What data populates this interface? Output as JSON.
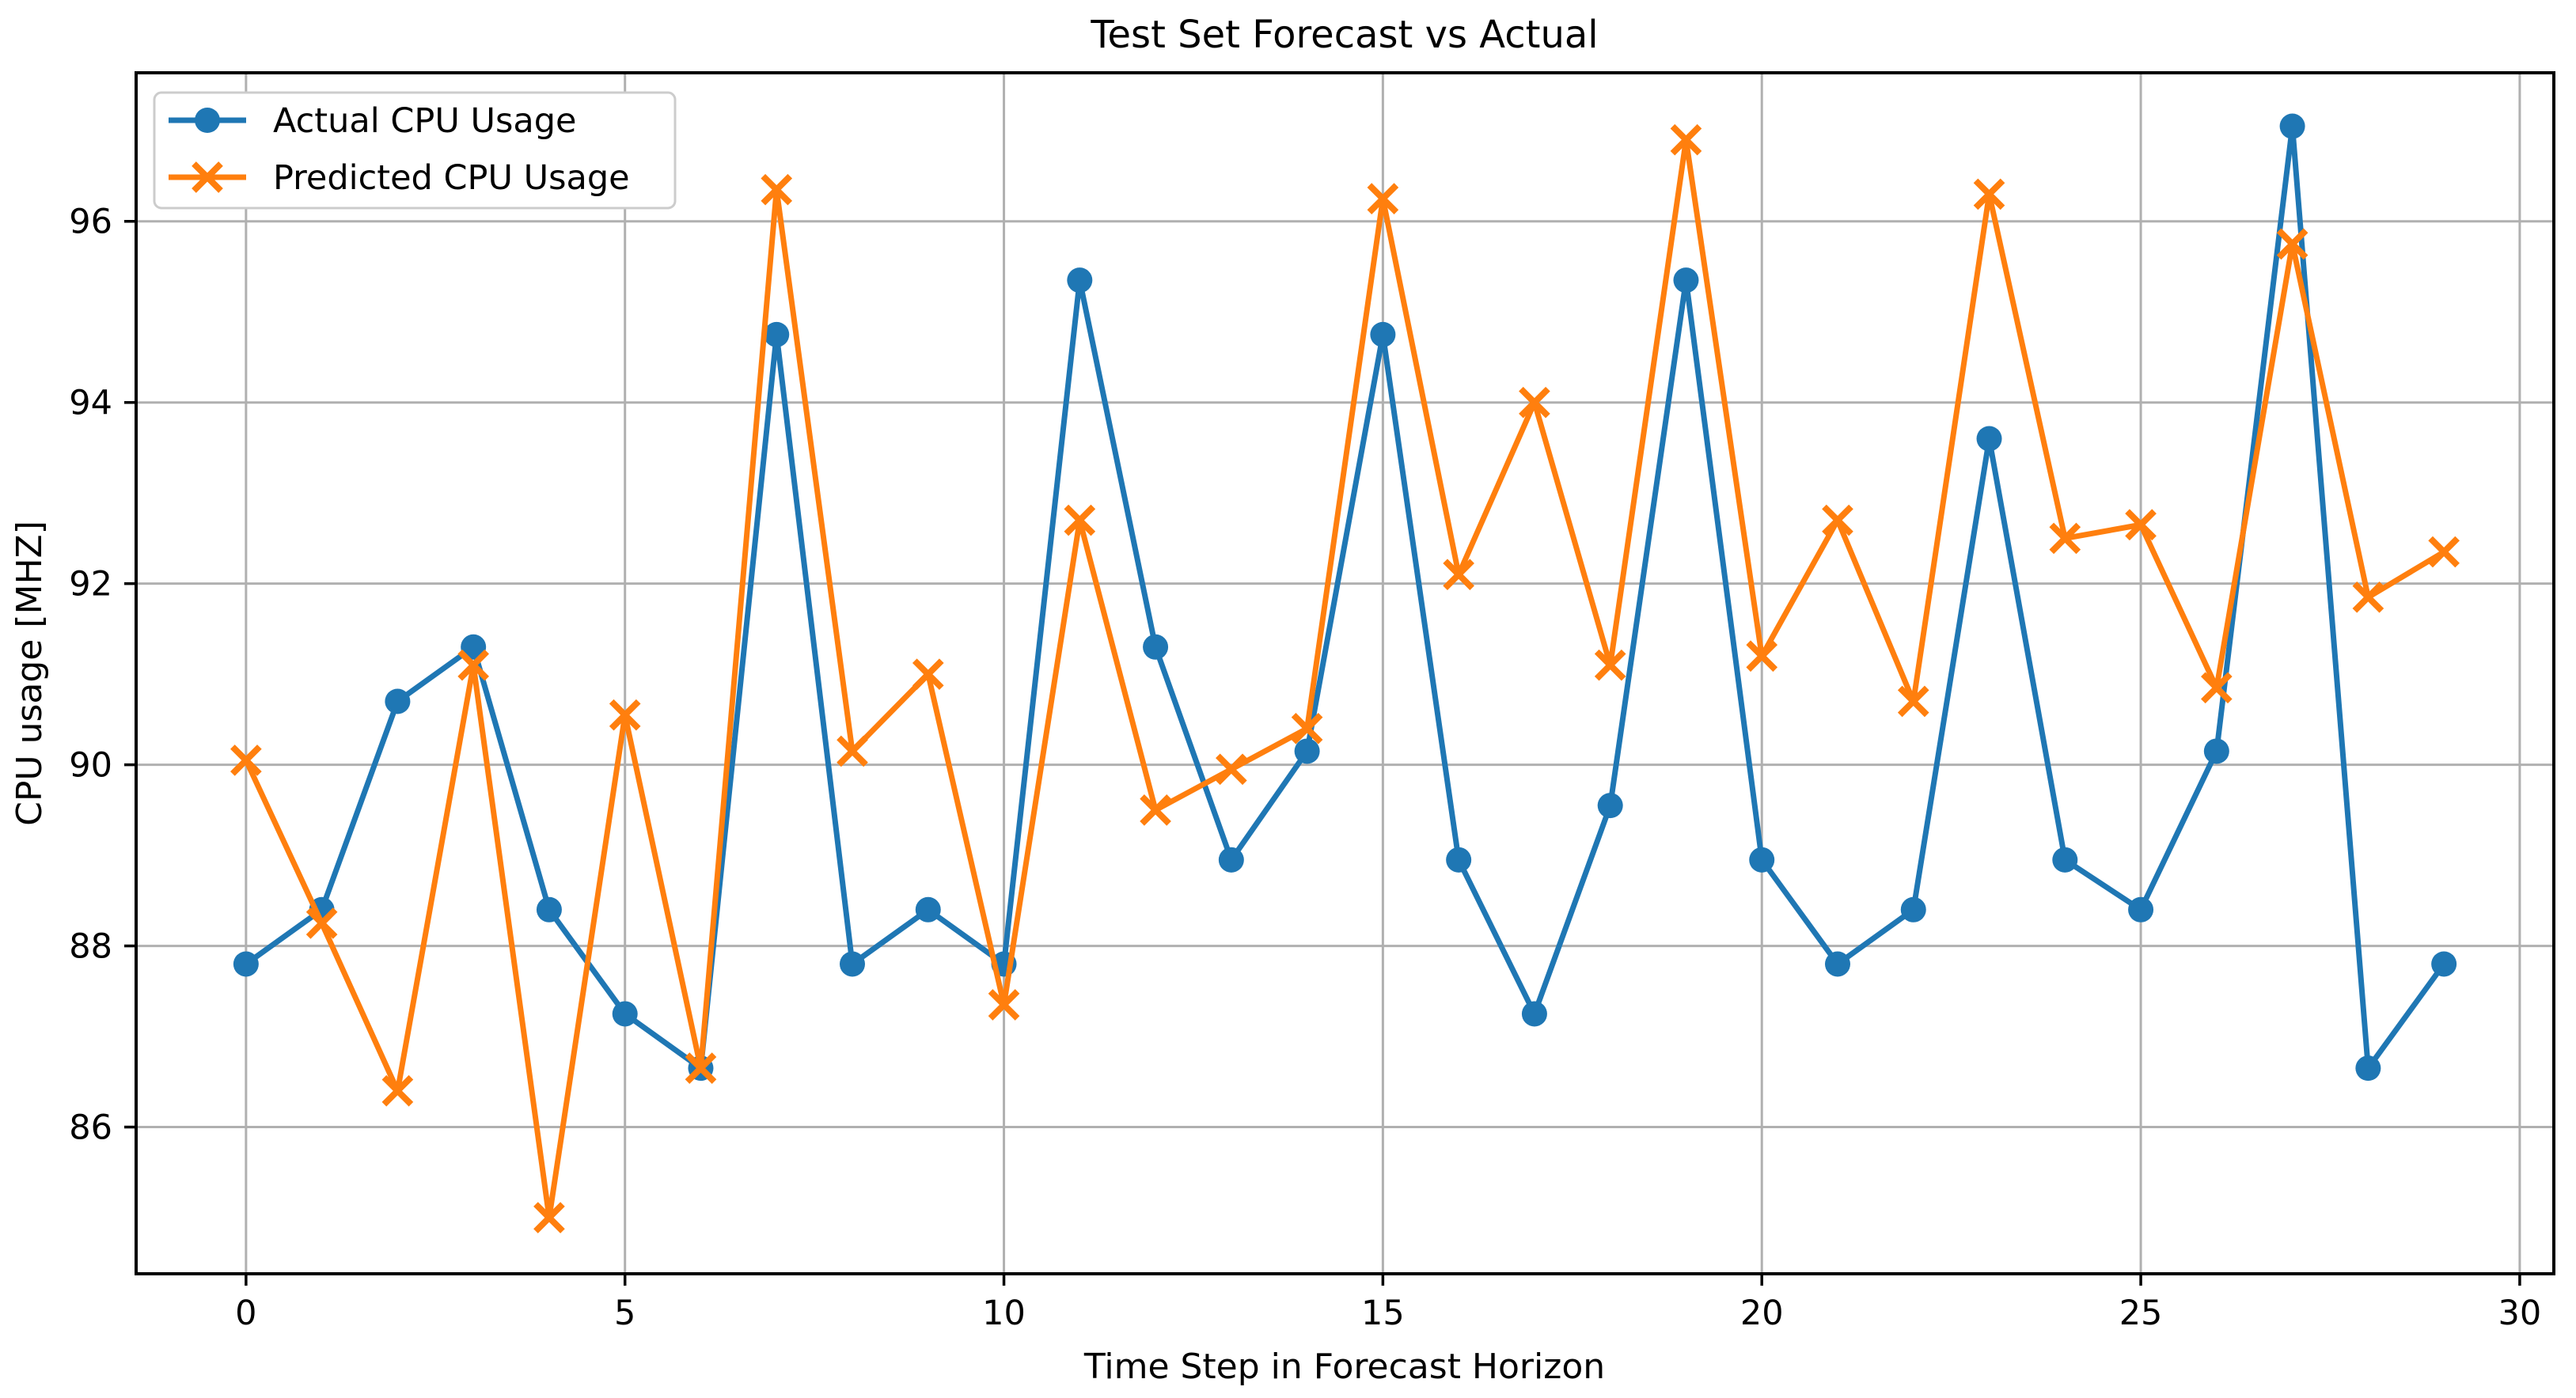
{
  "figure": {
    "background": "#ffffff"
  },
  "chart_data": {
    "type": "line",
    "title": "Test Set Forecast vs Actual",
    "xlabel": "Time Step in Forecast Horizon",
    "ylabel": "CPU usage [MHZ]",
    "x": [
      0,
      1,
      2,
      3,
      4,
      5,
      6,
      7,
      8,
      9,
      10,
      11,
      12,
      13,
      14,
      15,
      16,
      17,
      18,
      19,
      20,
      21,
      22,
      23,
      24,
      25,
      26,
      27,
      28,
      29
    ],
    "series": [
      {
        "name": "Actual CPU Usage",
        "color": "#1f77b4",
        "marker": "circle",
        "values": [
          87.8,
          88.4,
          90.7,
          91.3,
          88.4,
          87.25,
          86.65,
          94.75,
          87.8,
          88.4,
          87.8,
          95.35,
          91.3,
          88.95,
          90.15,
          94.75,
          88.95,
          87.25,
          89.55,
          95.35,
          88.95,
          87.8,
          88.4,
          93.6,
          88.95,
          88.4,
          90.15,
          97.05,
          86.65,
          87.8
        ]
      },
      {
        "name": "Predicted CPU Usage",
        "color": "#ff7f0e",
        "marker": "x",
        "values": [
          90.05,
          88.25,
          86.4,
          91.1,
          85.0,
          90.55,
          86.65,
          96.35,
          90.15,
          91.0,
          87.35,
          92.7,
          89.5,
          89.95,
          90.4,
          96.25,
          92.1,
          94.0,
          91.1,
          96.9,
          91.2,
          92.7,
          90.7,
          96.3,
          92.5,
          92.65,
          90.85,
          95.75,
          91.85,
          92.35
        ]
      }
    ],
    "xlim": [
      -1.45,
      30.45
    ],
    "ylim": [
      84.38,
      97.64
    ],
    "xticks": [
      0,
      5,
      10,
      15,
      20,
      25,
      30
    ],
    "yticks": [
      86,
      88,
      90,
      92,
      94,
      96
    ],
    "xtick_labels": [
      "0",
      "5",
      "10",
      "15",
      "20",
      "25",
      "30"
    ],
    "ytick_labels": [
      "86",
      "88",
      "90",
      "92",
      "94",
      "96"
    ],
    "grid": true,
    "grid_color": "#b0b0b0",
    "spine_color": "#000000",
    "tick_color": "#000000",
    "legend_position": "upper left",
    "legend_border_color": "#cccccc",
    "legend_background": "#ffffff"
  }
}
